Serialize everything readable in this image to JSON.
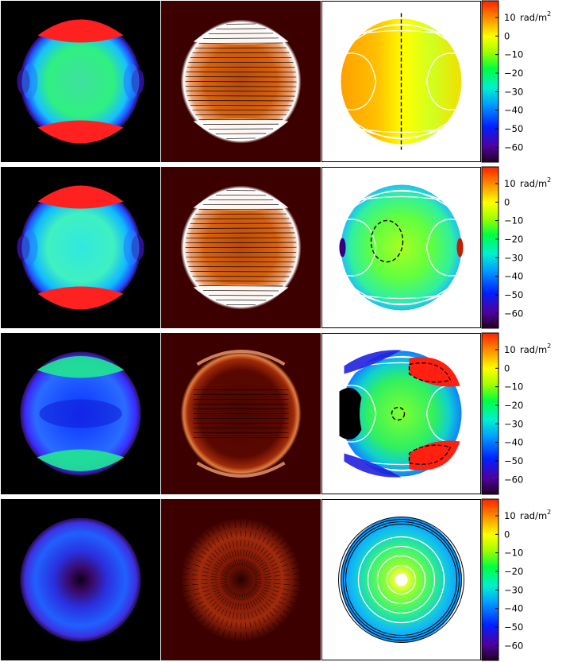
{
  "figure": {
    "rows": [
      {
        "id": "row-1",
        "rm_panel": "linear-gradient",
        "mask_contour": "dashed-vertical-line"
      },
      {
        "id": "row-2",
        "rm_panel": "green-dominant",
        "mask_contour": "dashed-ellipse"
      },
      {
        "id": "row-3",
        "rm_panel": "green-core-with-red-lobes",
        "mask_contour": "dashed-lobes"
      },
      {
        "id": "row-4",
        "rm_panel": "concentric",
        "mask_contour": "none"
      }
    ],
    "colorbar": {
      "unit_prefix": "rad/m",
      "unit_exp": "2",
      "ticks": [
        {
          "value": 10,
          "label": "10"
        },
        {
          "value": 0,
          "label": "0"
        },
        {
          "value": -10,
          "label": "−10"
        },
        {
          "value": -20,
          "label": "−20"
        },
        {
          "value": -30,
          "label": "−30"
        },
        {
          "value": -40,
          "label": "−40"
        },
        {
          "value": -50,
          "label": "−50"
        },
        {
          "value": -60,
          "label": "−60"
        }
      ],
      "range": [
        -68,
        19
      ],
      "colors": [
        "#200020",
        "#5000a0",
        "#0020ff",
        "#00b0ff",
        "#00f0d0",
        "#00ff40",
        "#a0ff00",
        "#ffff00",
        "#ff9000",
        "#ff2000"
      ]
    },
    "palette": {
      "intensity_bg": "#000000",
      "polarized_bg": "#3c0000",
      "polarized_disk": "#d9620e",
      "contour_line": "#ffffff",
      "vector_line": "#000000"
    }
  }
}
